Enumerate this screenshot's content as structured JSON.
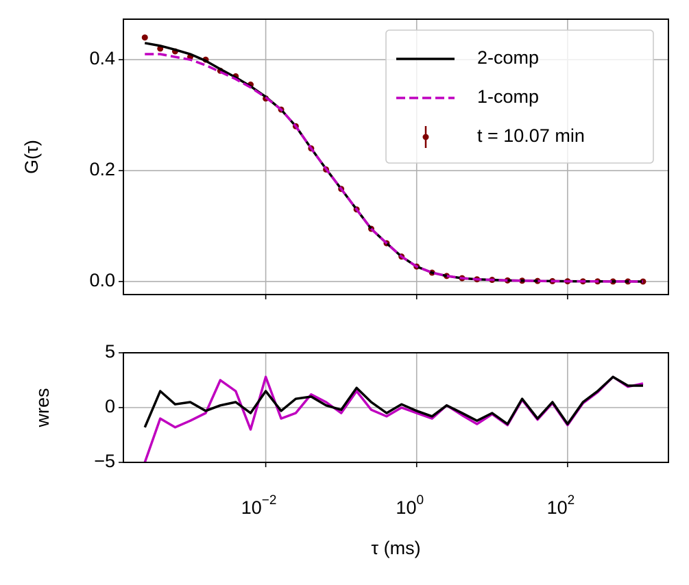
{
  "chart_data": [
    {
      "type": "line",
      "ylabel": "G(τ)",
      "xscale": "log",
      "grid": true,
      "legend": "upper right",
      "xlim": [
        0.00013,
        2170
      ],
      "ylim": [
        -0.0235,
        0.473
      ],
      "xticks": [
        0.01,
        1,
        100
      ],
      "yticks": [
        {
          "value": 0,
          "label": "0.0"
        },
        0.2,
        0.4
      ],
      "x": [
        0.00025,
        0.0004,
        0.00063,
        0.001,
        0.0016,
        0.0025,
        0.004,
        0.0063,
        0.01,
        0.016,
        0.025,
        0.04,
        0.063,
        0.1,
        0.16,
        0.25,
        0.4,
        0.63,
        1,
        1.6,
        2.5,
        4,
        6.3,
        10,
        16,
        25,
        40,
        63,
        100,
        160,
        250,
        400,
        630,
        1000
      ],
      "series": [
        {
          "name": "t = 10.07 min",
          "color": "#800000",
          "style": "points",
          "values": [
            0.44,
            0.42,
            0.415,
            0.405,
            0.4,
            0.38,
            0.37,
            0.355,
            0.33,
            0.31,
            0.28,
            0.24,
            0.202,
            0.167,
            0.13,
            0.095,
            0.069,
            0.045,
            0.027,
            0.016,
            0.01,
            0.006,
            0.004,
            0.003,
            0.002,
            0.0015,
            0.001,
            0.0007,
            0.0005,
            0.0003,
            0.0002,
            0.0001,
            0.0001,
            0
          ]
        },
        {
          "name": "2-comp",
          "color": "#000000",
          "style": "solid",
          "values": [
            0.43,
            0.425,
            0.418,
            0.41,
            0.398,
            0.383,
            0.368,
            0.352,
            0.333,
            0.31,
            0.28,
            0.24,
            0.203,
            0.167,
            0.13,
            0.095,
            0.069,
            0.045,
            0.027,
            0.016,
            0.01,
            0.006,
            0.004,
            0.003,
            0.002,
            0.0015,
            0.001,
            0.0007,
            0.0005,
            0.0003,
            0.0002,
            0.0001,
            0.0001,
            0
          ]
        },
        {
          "name": "1-comp",
          "color": "#bf00bf",
          "style": "dashed",
          "values": [
            0.41,
            0.41,
            0.405,
            0.4,
            0.39,
            0.378,
            0.365,
            0.35,
            0.332,
            0.31,
            0.28,
            0.24,
            0.203,
            0.167,
            0.13,
            0.095,
            0.069,
            0.045,
            0.027,
            0.016,
            0.01,
            0.006,
            0.004,
            0.003,
            0.002,
            0.0015,
            0.001,
            0.0007,
            0.0005,
            0.0003,
            0.0002,
            0.0001,
            0.0001,
            0
          ]
        }
      ]
    },
    {
      "type": "line",
      "ylabel": "wres",
      "xlabel": "τ (ms)",
      "xscale": "log",
      "grid": true,
      "xlim": [
        0.00013,
        2170
      ],
      "ylim": [
        -5,
        5
      ],
      "xticks": [
        {
          "value": 0.01,
          "label": "10−2"
        },
        {
          "value": 1,
          "label": "100"
        },
        {
          "value": 100,
          "label": "102"
        }
      ],
      "yticks": [
        {
          "value": -5,
          "label": "−5"
        },
        0,
        5
      ],
      "x": [
        0.00025,
        0.0004,
        0.00063,
        0.001,
        0.0016,
        0.0025,
        0.004,
        0.0063,
        0.01,
        0.016,
        0.025,
        0.04,
        0.063,
        0.1,
        0.16,
        0.25,
        0.4,
        0.63,
        1,
        1.6,
        2.5,
        4,
        6.3,
        10,
        16,
        25,
        40,
        63,
        100,
        160,
        250,
        400,
        630,
        1000
      ],
      "series": [
        {
          "name": "1-comp",
          "color": "#bf00bf",
          "style": "solid",
          "values": [
            -5.0,
            -1.0,
            -1.8,
            -1.2,
            -0.5,
            2.5,
            1.5,
            -2.0,
            2.8,
            -1.0,
            -0.5,
            1.2,
            0.5,
            -0.5,
            1.5,
            -0.2,
            -0.8,
            0,
            -0.5,
            -1.0,
            0.2,
            -0.7,
            -1.5,
            -0.6,
            -1.6,
            0.7,
            -1.1,
            0.4,
            -1.6,
            0.4,
            1.4,
            2.8,
            1.9,
            2.2
          ]
        },
        {
          "name": "2-comp",
          "color": "#000000",
          "style": "solid",
          "values": [
            -1.8,
            1.5,
            0.3,
            0.5,
            -0.3,
            0.2,
            0.5,
            -0.5,
            1.5,
            -0.3,
            0.8,
            1.0,
            0.2,
            -0.2,
            1.8,
            0.5,
            -0.5,
            0.3,
            -0.3,
            -0.8,
            0.2,
            -0.5,
            -1.2,
            -0.5,
            -1.5,
            0.8,
            -1.0,
            0.5,
            -1.5,
            0.5,
            1.5,
            2.8,
            2.0,
            2.0
          ]
        }
      ]
    }
  ]
}
